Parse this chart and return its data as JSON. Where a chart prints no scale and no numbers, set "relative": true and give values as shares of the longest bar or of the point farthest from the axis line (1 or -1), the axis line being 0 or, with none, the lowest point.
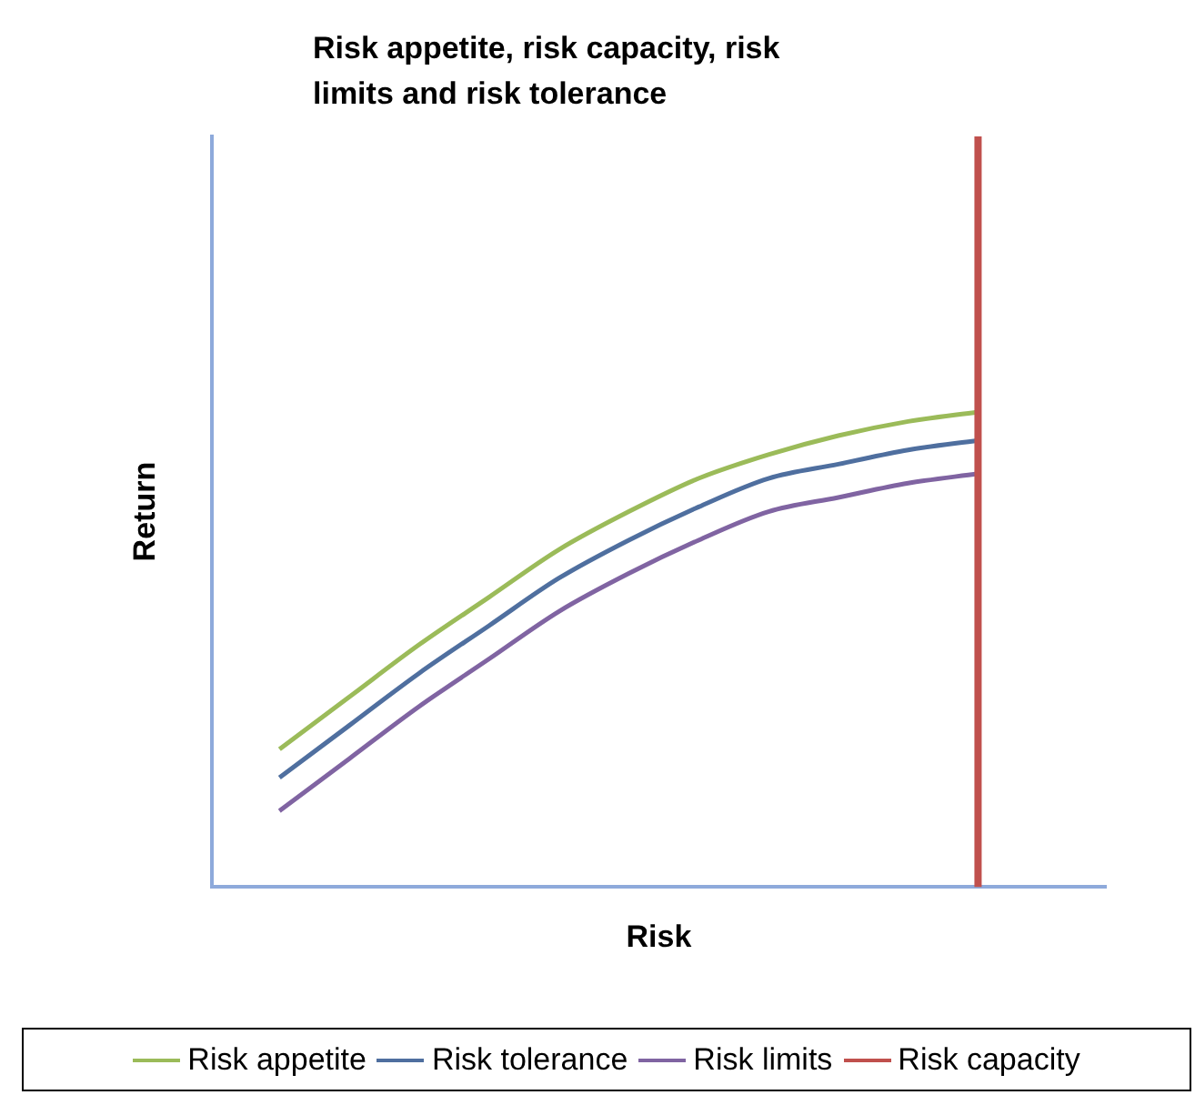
{
  "chart_data": {
    "type": "line",
    "title": "Risk appetite, risk capacity, risk limits and risk tolerance",
    "xlabel": "Risk",
    "ylabel": "Return",
    "relative": true,
    "categories": [
      null,
      null,
      null,
      null,
      null,
      null,
      null,
      null,
      null,
      null,
      null
    ],
    "series": [
      {
        "name": "Risk appetite",
        "color": "#9bbb59",
        "values": [
          0.29,
          0.4,
          0.51,
          0.61,
          0.71,
          0.79,
          0.86,
          0.91,
          0.95,
          0.98,
          1
        ]
      },
      {
        "name": "Risk tolerance",
        "color": "#4f6f9f",
        "values": [
          0.23,
          0.34,
          0.45,
          0.55,
          0.65,
          0.73,
          0.8,
          0.86,
          0.89,
          0.92,
          0.94
        ]
      },
      {
        "name": "Risk limits",
        "color": "#8064a2",
        "values": [
          0.16,
          0.27,
          0.38,
          0.48,
          0.58,
          0.66,
          0.73,
          0.79,
          0.82,
          0.85,
          0.87
        ]
      }
    ],
    "ref_lines": [
      {
        "axis": "x",
        "label": "Risk capacity",
        "color": "#c0504d"
      }
    ],
    "legend": "bottom",
    "grid": false,
    "marker": "none",
    "line_style": "solid"
  }
}
